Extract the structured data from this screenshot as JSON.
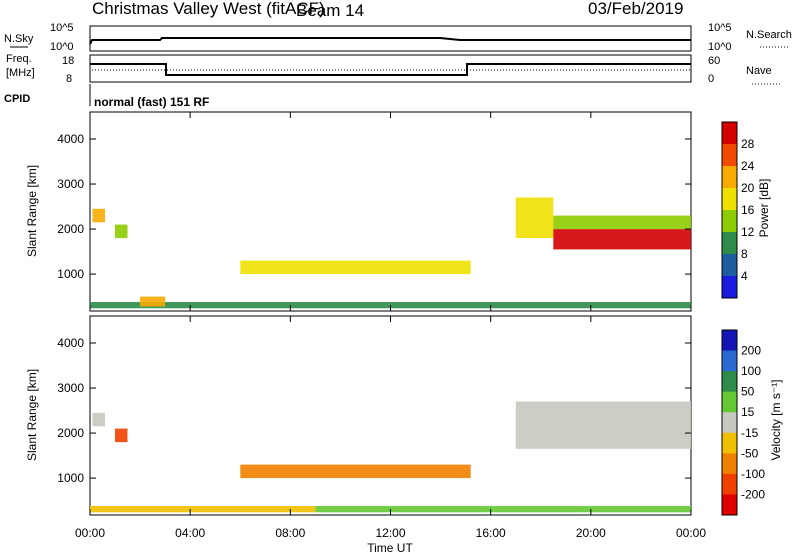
{
  "header": {
    "title": "Christmas Valley West (fitACF)",
    "beam": "Beam 14",
    "date": "03/Feb/2019"
  },
  "sky_panel": {
    "left_label": "N.Sky",
    "right_label": "N.Search",
    "left_ticks": [
      "10^5",
      "10^0"
    ],
    "right_ticks": [
      "10^5",
      "10^0"
    ]
  },
  "freq_panel": {
    "left_label_1": "Freq.",
    "left_label_2": "[MHz]",
    "right_label": "Nave",
    "left_ticks": [
      "18",
      "8"
    ],
    "right_ticks": [
      "60",
      "0"
    ]
  },
  "cpid": {
    "label": "CPID",
    "mode": "normal (fast) 151 RF"
  },
  "power_colorbar": {
    "label": "Power [dB]",
    "ticks": [
      "28",
      "24",
      "20",
      "16",
      "12",
      "8",
      "4"
    ],
    "colors": [
      "#d40000",
      "#f24a00",
      "#f8aa00",
      "#f0e000",
      "#8ccc00",
      "#2e8c4a",
      "#1e5ea0",
      "#1a1ae0"
    ]
  },
  "velocity_colorbar": {
    "label": "Velocity [m s⁻¹]",
    "ticks": [
      "200",
      "100",
      "50",
      "15",
      "-15",
      "-50",
      "-100",
      "-200"
    ],
    "colors": [
      "#1414b4",
      "#2a6ad2",
      "#2e8c4a",
      "#64c832",
      "#c8c8c0",
      "#f0c000",
      "#f08000",
      "#f04000",
      "#e00000"
    ]
  },
  "chart_data": [
    {
      "type": "heatmap",
      "panel": "power",
      "ylabel": "Slant Range [km]",
      "xlabel": "",
      "ylim": [
        180,
        4600
      ],
      "yticks": [
        1000,
        2000,
        3000,
        4000
      ],
      "xlim_hours": [
        0,
        24
      ],
      "regions": [
        {
          "t": [
            0.1,
            0.6
          ],
          "r": [
            2150,
            2450
          ],
          "value": 20
        },
        {
          "t": [
            1.0,
            1.5
          ],
          "r": [
            1800,
            2100
          ],
          "value": 12
        },
        {
          "t": [
            0,
            24
          ],
          "r": [
            240,
            380
          ],
          "value": 8
        },
        {
          "t": [
            2.0,
            3.0
          ],
          "r": [
            280,
            500
          ],
          "value": 22
        },
        {
          "t": [
            6.0,
            15.2
          ],
          "r": [
            1000,
            1300
          ],
          "value": 16
        },
        {
          "t": [
            17.0,
            18.5
          ],
          "r": [
            1800,
            2700
          ],
          "value": 18
        },
        {
          "t": [
            18.5,
            24
          ],
          "r": [
            1550,
            2000
          ],
          "value": 28
        },
        {
          "t": [
            18.5,
            24
          ],
          "r": [
            2000,
            2300
          ],
          "value": 12
        }
      ]
    },
    {
      "type": "heatmap",
      "panel": "velocity",
      "ylabel": "Slant Range [km]",
      "xlabel": "Time UT",
      "ylim": [
        180,
        4600
      ],
      "yticks": [
        1000,
        2000,
        3000,
        4000
      ],
      "xlim_hours": [
        0,
        24
      ],
      "xticks": [
        "00:00",
        "04:00",
        "08:00",
        "12:00",
        "16:00",
        "20:00",
        "00:00"
      ],
      "regions": [
        {
          "t": [
            0.1,
            0.6
          ],
          "r": [
            2150,
            2450
          ],
          "value": 0
        },
        {
          "t": [
            1.0,
            1.5
          ],
          "r": [
            1800,
            2100
          ],
          "value": -200
        },
        {
          "t": [
            0,
            9
          ],
          "r": [
            240,
            380
          ],
          "value": -40
        },
        {
          "t": [
            9,
            24
          ],
          "r": [
            240,
            380
          ],
          "value": 30
        },
        {
          "t": [
            6.0,
            15.2
          ],
          "r": [
            1000,
            1300
          ],
          "value": -80
        },
        {
          "t": [
            17.0,
            24
          ],
          "r": [
            1650,
            2700
          ],
          "value": 0
        }
      ]
    }
  ]
}
